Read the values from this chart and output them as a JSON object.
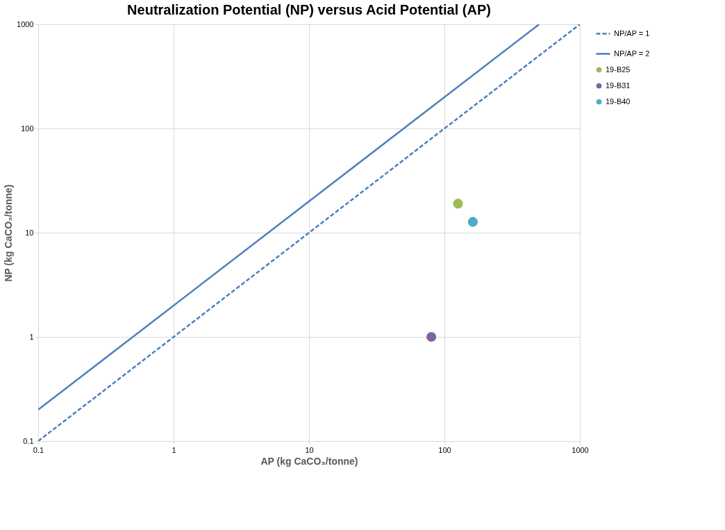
{
  "chart_data": {
    "type": "scatter",
    "title": "Neutralization Potential (NP) versus Acid Potential (AP)",
    "xlabel": "AP (kg CaCO₃/tonne)",
    "ylabel": "NP (kg CaCO₃/tonne)",
    "log": "xy",
    "xlim": [
      0.1,
      1000
    ],
    "ylim": [
      0.1,
      1000
    ],
    "xticks": [
      0.1,
      1,
      10,
      100,
      1000
    ],
    "yticks": [
      0.1,
      1,
      10,
      100,
      1000
    ],
    "grid": true,
    "legend": "right",
    "series": [
      {
        "name": "NP/AP = 1",
        "type": "line",
        "line_style": "dashed",
        "marker": "none",
        "color": "#4a7ebb",
        "x": [
          0.1,
          1000
        ],
        "values": [
          0.1,
          1000
        ]
      },
      {
        "name": "NP/AP = 2",
        "type": "line",
        "line_style": "solid",
        "marker": "none",
        "color": "#4a7ebb",
        "x": [
          0.1,
          500
        ],
        "values": [
          0.2,
          1000
        ]
      },
      {
        "name": "19-B25",
        "marker": "circle",
        "color": "#9bbb59",
        "x": [
          126
        ],
        "values": [
          19
        ]
      },
      {
        "name": "19-B31",
        "marker": "circle",
        "color": "#8064a2",
        "x": [
          80
        ],
        "values": [
          1
        ]
      },
      {
        "name": "19-B40",
        "marker": "circle",
        "color": "#4bacc6",
        "x": [
          162
        ],
        "values": [
          12.7
        ]
      }
    ]
  }
}
